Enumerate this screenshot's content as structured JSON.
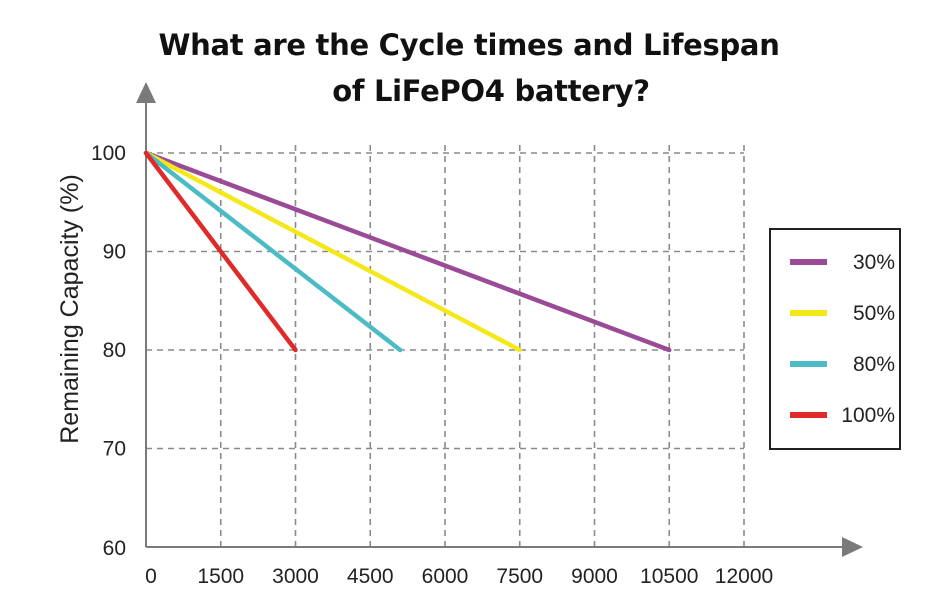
{
  "title": {
    "line1": "What are the Cycle times and Lifespan",
    "line2": "of LiFePO4 battery?"
  },
  "chart_data": {
    "type": "line",
    "title": "What are the Cycle times and Lifespan of LiFePO4 battery?",
    "xlabel": "",
    "ylabel": "Remaining Capacity (%)",
    "xlim": [
      0,
      12000
    ],
    "ylim": [
      60,
      100
    ],
    "x_ticks": [
      "0",
      "1500",
      "3000",
      "4500",
      "6000",
      "7500",
      "9000",
      "10500",
      "12000"
    ],
    "y_ticks": [
      "60",
      "70",
      "80",
      "90",
      "100"
    ],
    "grid": true,
    "legend_position": "right",
    "series": [
      {
        "name": "30%",
        "color": "#9b4a96",
        "x": [
          0,
          10500
        ],
        "y": [
          100,
          80
        ]
      },
      {
        "name": "50%",
        "color": "#f5e81a",
        "x": [
          0,
          7500
        ],
        "y": [
          100,
          80
        ]
      },
      {
        "name": "80%",
        "color": "#4cbcc4",
        "x": [
          0,
          5100
        ],
        "y": [
          100,
          80
        ]
      },
      {
        "name": "100%",
        "color": "#e02a2a",
        "x": [
          0,
          3000
        ],
        "y": [
          100,
          80
        ]
      }
    ]
  }
}
